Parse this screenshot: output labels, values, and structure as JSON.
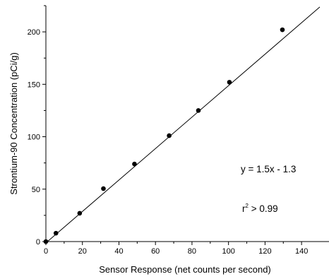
{
  "chart_data": {
    "type": "scatter",
    "title": "",
    "xlabel": "Sensor Response (net counts per second)",
    "ylabel": "Strontium-90 Concentration (pCi/g)",
    "xlim": [
      0,
      150
    ],
    "ylim": [
      0,
      225
    ],
    "x_ticks": [
      0,
      20,
      40,
      60,
      80,
      100,
      120,
      140
    ],
    "y_ticks": [
      0,
      50,
      100,
      150,
      200
    ],
    "grid": false,
    "legend": "none",
    "series": [
      {
        "x": [
          0,
          5.5,
          18.5,
          31.5,
          48.5,
          67.5,
          83.5,
          100.5,
          129.5
        ],
        "y": [
          0,
          8,
          27,
          50.5,
          74,
          101,
          125,
          152,
          202
        ]
      }
    ],
    "fit_line": {
      "slope": 1.5,
      "intercept": -1.3,
      "x_range": [
        0,
        150
      ]
    },
    "annotations": {
      "equation": "y = 1.5x - 1.3",
      "r2_base": "r",
      "r2_sup": "2",
      "r2_rest": " > 0.99"
    },
    "colors": {
      "marker": "#000000",
      "line": "#000000",
      "axis": "#000000"
    }
  }
}
